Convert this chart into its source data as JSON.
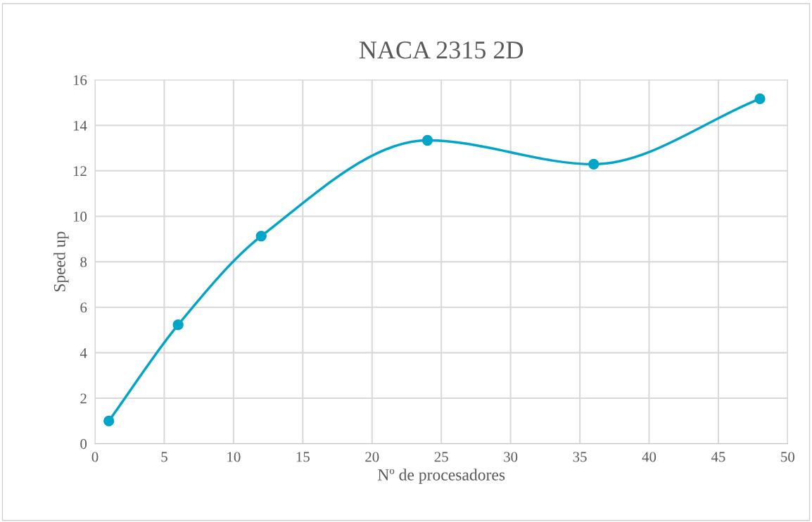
{
  "chart_data": {
    "type": "line",
    "title": "NACA 2315 2D",
    "xlabel": "Nº de procesadores",
    "ylabel": "Speed up",
    "x": [
      1,
      6,
      12,
      24,
      36,
      48
    ],
    "series": [
      {
        "color": "#00a5c8",
        "values": [
          1.0,
          5.23,
          9.13,
          13.34,
          12.29,
          15.17
        ]
      }
    ],
    "xlim": [
      0,
      50
    ],
    "xticks": [
      0,
      5,
      10,
      15,
      20,
      25,
      30,
      35,
      40,
      45,
      50
    ],
    "ylim": [
      0,
      16
    ],
    "yticks": [
      0,
      2,
      4,
      6,
      8,
      10,
      12,
      14,
      16
    ],
    "grid": true,
    "marker": "circle",
    "line_style": "solid",
    "legend": false
  }
}
